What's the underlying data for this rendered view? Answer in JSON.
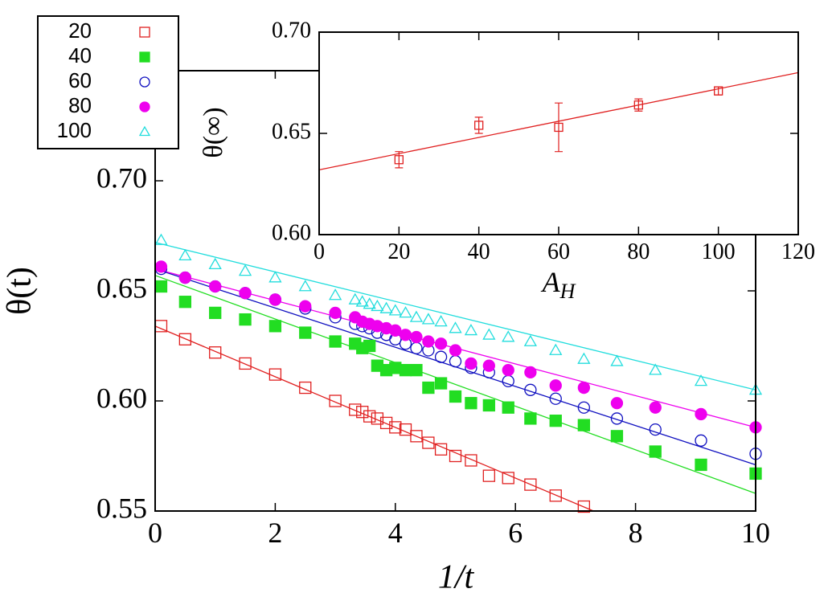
{
  "chart_data": [
    {
      "type": "scatter",
      "xlabel": "1/t",
      "ylabel": "θ(t)",
      "x": [
        10,
        9.09,
        8.33,
        7.69,
        7.14,
        6.67,
        6.25,
        5.88,
        5.56,
        5.26,
        5.0,
        4.76,
        4.55,
        4.35,
        4.17,
        4.0,
        3.85,
        3.7,
        3.57,
        3.45,
        3.33,
        3.0,
        2.5,
        2.0,
        1.5,
        1.0,
        0.5,
        0.1
      ],
      "series": [
        {
          "name": "20",
          "color": "#e02020",
          "marker": "open-square",
          "values": [
            null,
            null,
            null,
            null,
            0.552,
            0.557,
            0.562,
            0.565,
            0.566,
            0.573,
            0.575,
            0.578,
            0.581,
            0.584,
            0.587,
            0.588,
            0.59,
            0.592,
            0.593,
            0.595,
            0.596,
            0.6,
            0.606,
            0.612,
            0.617,
            0.622,
            0.628,
            0.634
          ]
        },
        {
          "name": "40",
          "color": "#22dd22",
          "marker": "filled-square",
          "values": [
            0.567,
            0.571,
            0.577,
            0.584,
            0.589,
            0.591,
            0.592,
            0.597,
            0.598,
            0.599,
            0.602,
            0.608,
            0.606,
            0.614,
            0.614,
            0.615,
            0.614,
            0.616,
            0.625,
            0.624,
            0.626,
            0.627,
            0.631,
            0.634,
            0.637,
            0.64,
            0.645,
            0.652
          ]
        },
        {
          "name": "60",
          "color": "#1010c0",
          "marker": "open-circle",
          "values": [
            0.576,
            0.582,
            0.587,
            0.592,
            0.597,
            0.601,
            0.605,
            0.609,
            0.613,
            0.615,
            0.618,
            0.62,
            0.623,
            0.624,
            0.626,
            0.628,
            0.63,
            0.631,
            0.633,
            0.634,
            0.635,
            0.638,
            0.642,
            0.646,
            0.649,
            0.652,
            0.656,
            0.66
          ]
        },
        {
          "name": "80",
          "color": "#ee00ee",
          "marker": "filled-circle",
          "values": [
            0.588,
            0.594,
            0.597,
            0.599,
            0.606,
            0.607,
            0.613,
            0.614,
            0.616,
            0.617,
            0.623,
            0.626,
            0.627,
            0.629,
            0.63,
            0.632,
            0.633,
            0.634,
            0.635,
            0.636,
            0.638,
            0.64,
            0.643,
            0.646,
            0.649,
            0.652,
            0.656,
            0.661
          ]
        },
        {
          "name": "100",
          "color": "#22dddd",
          "marker": "open-triangle",
          "values": [
            0.605,
            0.609,
            0.614,
            0.618,
            0.619,
            0.623,
            0.627,
            0.629,
            0.63,
            0.632,
            0.633,
            0.636,
            0.637,
            0.638,
            0.64,
            0.641,
            0.642,
            0.643,
            0.644,
            0.645,
            0.646,
            0.648,
            0.652,
            0.656,
            0.659,
            0.662,
            0.666,
            0.673
          ]
        }
      ],
      "fit_lines": [
        {
          "color": "#e02020",
          "x": [
            0,
            7.3
          ],
          "values": [
            0.634,
            0.55
          ]
        },
        {
          "color": "#22dd22",
          "x": [
            0,
            10
          ],
          "values": [
            0.657,
            0.558
          ]
        },
        {
          "color": "#1010c0",
          "x": [
            0,
            10
          ],
          "values": [
            0.66,
            0.571
          ]
        },
        {
          "color": "#ee00ee",
          "x": [
            0,
            10
          ],
          "values": [
            0.66,
            0.588
          ]
        },
        {
          "color": "#22dddd",
          "x": [
            0,
            10
          ],
          "values": [
            0.672,
            0.605
          ]
        }
      ],
      "xlim": [
        0,
        10
      ],
      "xticks": [
        0,
        2,
        4,
        6,
        8,
        10
      ],
      "ylim": [
        0.55,
        0.75
      ],
      "yticks": [
        0.55,
        {
          "value": 0.6,
          "label": "0.60"
        },
        0.65,
        {
          "value": 0.7,
          "label": "0.70"
        }
      ],
      "legend": "top-left"
    },
    {
      "type": "errorbar",
      "xlabel": "A",
      "xlabel_subscript": "H",
      "ylabel": "θ(∞)",
      "x": [
        20,
        40,
        60,
        80,
        100
      ],
      "series": [
        {
          "color": "#e02020",
          "marker": "open-square",
          "values": [
            0.637,
            0.654,
            0.653,
            0.664,
            0.671
          ],
          "errors": [
            0.004,
            0.004,
            0.012,
            0.003,
            0.002
          ]
        }
      ],
      "fit_lines": [
        {
          "color": "#e02020",
          "x": [
            0,
            120
          ],
          "values": [
            0.632,
            0.68
          ]
        }
      ],
      "xlim": [
        0,
        120
      ],
      "xticks": [
        0,
        20,
        40,
        60,
        80,
        100,
        120
      ],
      "ylim": [
        0.6,
        0.7
      ],
      "yticks": [
        {
          "value": 0.6,
          "label": "0.60"
        },
        0.65,
        {
          "value": 0.7,
          "label": "0.70"
        }
      ]
    }
  ]
}
